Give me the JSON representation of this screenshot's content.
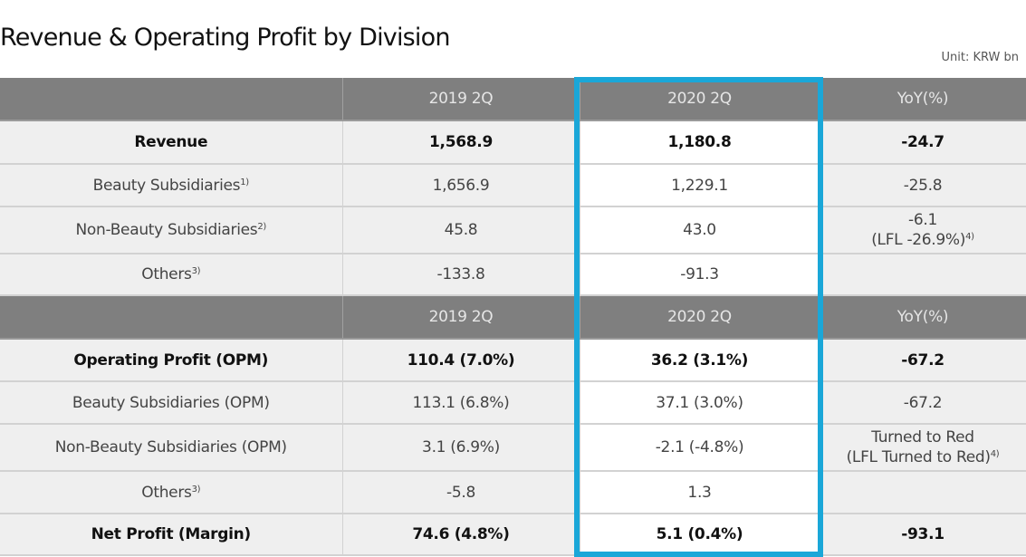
{
  "title": "Revenue & Operating Profit by Division",
  "unit": "Unit: KRW bn",
  "highlight_color": "#1aa7d8",
  "headers": [
    "",
    "2019 2Q",
    "2020 2Q",
    "YoY(%)"
  ],
  "revenue_rows": [
    {
      "label": "Revenue",
      "sup": "",
      "v2019": "1,568.9",
      "v2020": "1,180.8",
      "yoy": "-24.7",
      "yoy2": "",
      "yoy2_sup": "",
      "bold": true
    },
    {
      "label": "Beauty Subsidiaries",
      "sup": "1)",
      "v2019": "1,656.9",
      "v2020": "1,229.1",
      "yoy": "-25.8",
      "yoy2": "",
      "yoy2_sup": ""
    },
    {
      "label": "Non-Beauty Subsidiaries",
      "sup": "2)",
      "v2019": "45.8",
      "v2020": "43.0",
      "yoy": "-6.1",
      "yoy2": "(LFL -26.9%)",
      "yoy2_sup": "4)"
    },
    {
      "label": "Others",
      "sup": "3)",
      "v2019": "-133.8",
      "v2020": "-91.3",
      "yoy": "",
      "yoy2": "",
      "yoy2_sup": ""
    }
  ],
  "profit_rows": [
    {
      "label": "Operating Profit (OPM)",
      "sup": "",
      "v2019": "110.4 (7.0%)",
      "v2020": "36.2 (3.1%)",
      "yoy": "-67.2",
      "yoy2": "",
      "yoy2_sup": "",
      "bold": true
    },
    {
      "label": "Beauty Subsidiaries (OPM)",
      "sup": "",
      "v2019": "113.1 (6.8%)",
      "v2020": "37.1 (3.0%)",
      "yoy": "-67.2",
      "yoy2": "",
      "yoy2_sup": ""
    },
    {
      "label": "Non-Beauty Subsidiaries (OPM)",
      "sup": "",
      "v2019": "3.1 (6.9%)",
      "v2020": "-2.1 (-4.8%)",
      "yoy": "Turned to Red",
      "yoy2": "(LFL Turned to Red)",
      "yoy2_sup": "4)"
    },
    {
      "label": "Others",
      "sup": "3)",
      "v2019": "-5.8",
      "v2020": "1.3",
      "yoy": "",
      "yoy2": "",
      "yoy2_sup": ""
    },
    {
      "label": "Net Profit (Margin)",
      "sup": "",
      "v2019": "74.6 (4.8%)",
      "v2020": "5.1 (0.4%)",
      "yoy": "-93.1",
      "yoy2": "",
      "yoy2_sup": "",
      "bold": true
    }
  ]
}
